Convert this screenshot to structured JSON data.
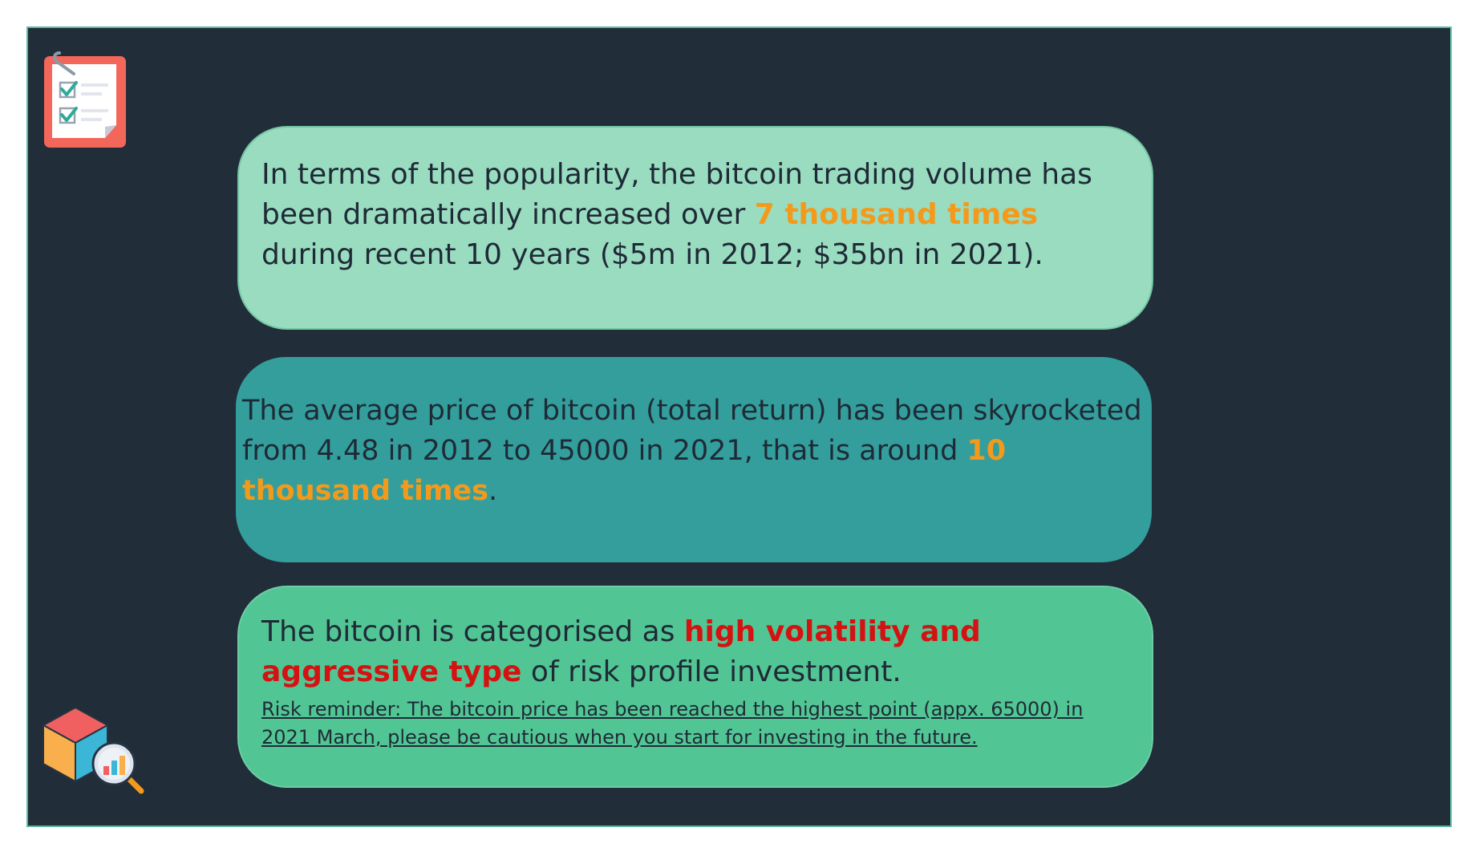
{
  "cards": {
    "popularity": {
      "text_before": "In terms of the popularity, the bitcoin trading volume has been dramatically increased over ",
      "highlight": "7 thousand times",
      "text_after": " during recent 10 years ($5m in 2012; $35bn in 2021)."
    },
    "price": {
      "text_before": "The average price of bitcoin (total return) has been skyrocketed from 4.48 in 2012 to 45000 in 2021, that is around ",
      "highlight": "10 thousand times",
      "text_after": "."
    },
    "risk": {
      "text_before": "The bitcoin is categorised as ",
      "highlight": "high volatility and aggressive type",
      "text_after": " of risk profile investment.",
      "reminder": "Risk reminder: The bitcoin price has been reached the highest point (appx. 65000) in 2021 March, please be cautious when you start for investing in the future."
    }
  },
  "icons": {
    "top_left": "checklist-icon",
    "bottom_left": "data-cube-analysis-icon"
  },
  "colors": {
    "background": "#212d38",
    "card_popularity": "#99dcc0",
    "card_price": "#339e9c",
    "card_risk": "#52c594",
    "highlight_orange": "#f39a1c",
    "highlight_red": "#d41212"
  }
}
